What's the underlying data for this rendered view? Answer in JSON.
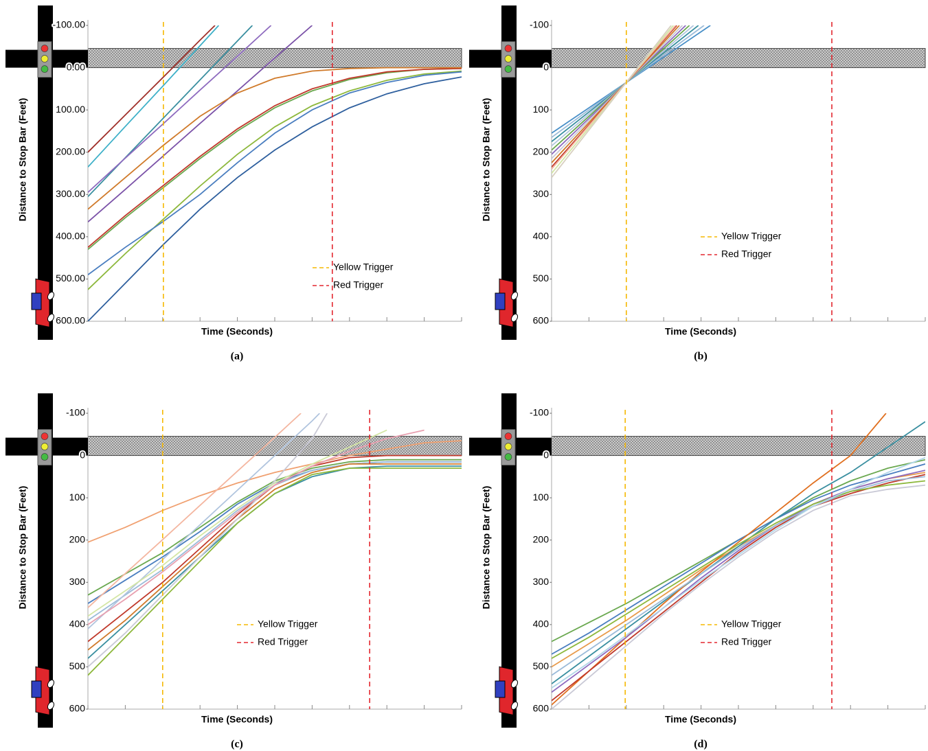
{
  "chart_data": [
    {
      "type": "line",
      "caption": "(a)",
      "ylabel": "Distance to Stop Bar (Feet)",
      "xlabel": "Time (Seconds)",
      "y_inverted": true,
      "ylim": [
        -100,
        600
      ],
      "xlim": [
        0,
        10
      ],
      "yticks": [
        {
          "value": -100,
          "label": "-100.00"
        },
        {
          "value": 0,
          "label": "0.00"
        },
        {
          "value": 100,
          "label": "100.00"
        },
        {
          "value": 200,
          "label": "200.00"
        },
        {
          "value": 300,
          "label": "300.00"
        },
        {
          "value": 400,
          "label": "400.00"
        },
        {
          "value": 500,
          "label": "500.00"
        },
        {
          "value": 600,
          "label": "600.00"
        }
      ],
      "xticks": [
        0,
        1,
        2,
        3,
        4,
        5,
        6,
        7,
        8,
        9,
        10
      ],
      "legend_position": "center-right",
      "vlines": [
        {
          "name": "Yellow Trigger",
          "color": "#f5b800",
          "x": 2.02
        },
        {
          "name": "Red Trigger",
          "color": "#e3262e",
          "x": 6.54
        }
      ],
      "x": [
        0,
        1,
        2,
        3,
        4,
        5,
        6,
        7,
        8,
        9,
        10
      ],
      "series": [
        {
          "color": "#2e5f9e",
          "values": [
            600,
            510,
            420,
            335,
            260,
            195,
            140,
            95,
            62,
            38,
            22
          ]
        },
        {
          "color": "#8db83c",
          "values": [
            525,
            440,
            360,
            280,
            205,
            140,
            90,
            55,
            30,
            15,
            8
          ]
        },
        {
          "color": "#4a7ec0",
          "values": [
            490,
            425,
            365,
            300,
            225,
            155,
            100,
            60,
            35,
            18,
            10
          ]
        },
        {
          "color": "#6aa84f",
          "values": [
            430,
            355,
            285,
            215,
            150,
            95,
            55,
            28,
            12,
            4,
            2
          ]
        },
        {
          "color": "#c0392b",
          "values": [
            425,
            350,
            280,
            210,
            145,
            90,
            50,
            25,
            10,
            4,
            2
          ]
        },
        {
          "color": "#7b52a8",
          "x": [
            0,
            1,
            2,
            3,
            4,
            5,
            6
          ],
          "values": [
            365,
            288,
            210,
            132,
            55,
            -23,
            -100
          ]
        },
        {
          "color": "#d07a2a",
          "values": [
            335,
            260,
            185,
            115,
            60,
            25,
            8,
            2,
            0,
            0,
            0
          ]
        },
        {
          "color": "#3a8fa0",
          "x": [
            0,
            1,
            2,
            3,
            4,
            4.4
          ],
          "values": [
            305,
            213,
            121,
            29,
            -63,
            -100
          ]
        },
        {
          "color": "#8e6bbf",
          "x": [
            0,
            1,
            2,
            3,
            4,
            4.9
          ],
          "values": [
            295,
            214,
            134,
            53,
            -27,
            -100
          ]
        },
        {
          "color": "#3db0c8",
          "x": [
            0,
            1,
            2,
            3,
            3.5
          ],
          "values": [
            235,
            139,
            44,
            -52,
            -100
          ]
        },
        {
          "color": "#a0302a",
          "x": [
            0,
            1,
            2,
            3,
            3.4
          ],
          "values": [
            200,
            112,
            24,
            -65,
            -100
          ]
        }
      ]
    },
    {
      "type": "line",
      "caption": "(b)",
      "ylabel": "Distance to Stop Bar (Feet)",
      "xlabel": "Time (Seconds)",
      "y_inverted": true,
      "ylim": [
        -100,
        600
      ],
      "xlim": [
        0,
        10
      ],
      "yticks": [
        -100,
        0,
        100,
        200,
        300,
        400,
        500,
        600
      ],
      "xticks": [
        0,
        1,
        2,
        3,
        4,
        5,
        6,
        7,
        8,
        9,
        10
      ],
      "legend_position": "center",
      "vlines": [
        {
          "name": "Yellow Trigger",
          "color": "#f5b800",
          "x": 2.0
        },
        {
          "name": "Red Trigger",
          "color": "#e3262e",
          "x": 7.5
        }
      ],
      "x": [
        0,
        1,
        2,
        3
      ],
      "series": [
        {
          "color": "#4a90c8",
          "x": [
            0,
            1,
            2,
            3,
            4.25
          ],
          "values": [
            155,
            95,
            35,
            -25,
            -100
          ]
        },
        {
          "color": "#9bbbd9",
          "x": [
            0,
            1,
            2,
            3,
            4.08
          ],
          "values": [
            165,
            100,
            35,
            -30,
            -100
          ]
        },
        {
          "color": "#3a8fa0",
          "x": [
            0,
            1,
            2,
            3,
            3.93
          ],
          "values": [
            175,
            105,
            35,
            -35,
            -100
          ]
        },
        {
          "color": "#b0c4de",
          "x": [
            0,
            1,
            2,
            3,
            3.8
          ],
          "values": [
            185,
            110,
            35,
            -40,
            -100
          ]
        },
        {
          "color": "#6aa84f",
          "x": [
            0,
            1,
            2,
            3,
            3.69
          ],
          "values": [
            195,
            115,
            35,
            -45,
            -100
          ]
        },
        {
          "color": "#8e6bbf",
          "x": [
            0,
            1,
            2,
            3,
            3.59
          ],
          "values": [
            205,
            120,
            35,
            -50,
            -100
          ]
        },
        {
          "color": "#c9c9d6",
          "x": [
            0,
            1,
            2,
            3,
            3.5
          ],
          "values": [
            215,
            125,
            35,
            -55,
            -100
          ]
        },
        {
          "color": "#d07a2a",
          "x": [
            0,
            1,
            2,
            3,
            3.42
          ],
          "values": [
            225,
            130,
            35,
            -60,
            -100
          ]
        },
        {
          "color": "#c0392b",
          "x": [
            0,
            1,
            2,
            3,
            3.35
          ],
          "values": [
            235,
            135,
            35,
            -65,
            -100
          ]
        },
        {
          "color": "#f4b6a0",
          "x": [
            0,
            1,
            2,
            3,
            3.32
          ],
          "values": [
            240,
            137.5,
            35,
            -67.5,
            -100
          ]
        },
        {
          "color": "#d4e6a5",
          "x": [
            0,
            1,
            2,
            3,
            3.26
          ],
          "values": [
            250,
            142.5,
            35,
            -72.5,
            -100
          ]
        },
        {
          "color": "#d8d0c0",
          "x": [
            0,
            1,
            2,
            3,
            3.2
          ],
          "values": [
            260,
            147.5,
            35,
            -77.5,
            -100
          ]
        }
      ]
    },
    {
      "type": "line",
      "caption": "(c)",
      "ylabel": "Distance to Stop Bar (Feet)",
      "xlabel": "Time (Seconds)",
      "y_inverted": true,
      "ylim": [
        -100,
        600
      ],
      "xlim": [
        0,
        10
      ],
      "yticks": [
        -100,
        0,
        100,
        200,
        300,
        400,
        500,
        600
      ],
      "xticks": [
        0,
        1,
        2,
        3,
        4,
        5,
        6,
        7,
        8,
        9,
        10
      ],
      "legend_position": "center",
      "vlines": [
        {
          "name": "Yellow Trigger",
          "color": "#f5b800",
          "x": 2.0
        },
        {
          "name": "Red Trigger",
          "color": "#e3262e",
          "x": 7.54
        }
      ],
      "x": [
        0,
        1,
        2,
        3,
        4,
        5,
        6,
        7,
        8,
        9,
        10
      ],
      "series": [
        {
          "color": "#f0a070",
          "values": [
            205,
            170,
            130,
            95,
            65,
            40,
            20,
            0,
            -15,
            -30,
            -35
          ]
        },
        {
          "color": "#6aa84f",
          "values": [
            330,
            280,
            230,
            170,
            110,
            60,
            30,
            15,
            10,
            10,
            10
          ]
        },
        {
          "color": "#4a7ec0",
          "values": [
            350,
            295,
            240,
            180,
            115,
            65,
            35,
            20,
            15,
            15,
            15
          ]
        },
        {
          "color": "#9bbbd9",
          "values": [
            390,
            330,
            270,
            200,
            130,
            70,
            35,
            20,
            15,
            15,
            15
          ]
        },
        {
          "color": "#c0392b",
          "values": [
            440,
            370,
            300,
            220,
            140,
            70,
            25,
            5,
            0,
            0,
            0
          ]
        },
        {
          "color": "#d07a2a",
          "values": [
            460,
            390,
            310,
            230,
            150,
            80,
            40,
            20,
            20,
            20,
            20
          ]
        },
        {
          "color": "#3a8fa0",
          "values": [
            480,
            400,
            320,
            240,
            160,
            90,
            50,
            30,
            25,
            25,
            25
          ]
        },
        {
          "color": "#8db83c",
          "values": [
            520,
            430,
            340,
            250,
            160,
            90,
            45,
            30,
            30,
            30,
            30
          ]
        },
        {
          "color": "#c9c9d6",
          "x": [
            0,
            1,
            2,
            3,
            4,
            5,
            6,
            6.4
          ],
          "values": [
            500,
            420,
            330,
            240,
            150,
            60,
            -40,
            -100
          ]
        },
        {
          "color": "#b0c4de",
          "x": [
            0,
            1,
            2,
            3,
            4,
            5,
            6,
            6.2
          ],
          "values": [
            410,
            328,
            246,
            164,
            82,
            0,
            -82,
            -100
          ]
        },
        {
          "color": "#f4b6a0",
          "x": [
            0,
            1,
            2,
            3,
            4,
            5,
            5.7
          ],
          "values": [
            360,
            279,
            199,
            118,
            37,
            -43,
            -100
          ]
        },
        {
          "color": "#d4e6a5",
          "x": [
            0,
            1,
            2,
            3,
            4,
            5,
            6,
            7,
            8
          ],
          "values": [
            380,
            320,
            260,
            190,
            125,
            65,
            20,
            -20,
            -60
          ]
        },
        {
          "color": "#e8a0b0",
          "x": [
            0,
            1,
            2,
            3,
            4,
            5,
            6,
            7,
            8,
            9
          ],
          "values": [
            400,
            340,
            275,
            205,
            135,
            70,
            25,
            -10,
            -40,
            -60
          ]
        }
      ]
    },
    {
      "type": "line",
      "caption": "(d)",
      "ylabel": "Distance to Stop Bar (Feet)",
      "xlabel": "Time (Seconds)",
      "y_inverted": true,
      "ylim": [
        -100,
        600
      ],
      "xlim": [
        0,
        10
      ],
      "yticks": [
        -100,
        0,
        100,
        200,
        300,
        400,
        500,
        600
      ],
      "xticks": [
        0,
        1,
        2,
        3,
        4,
        5,
        6,
        7,
        8,
        9,
        10
      ],
      "legend_position": "center",
      "vlines": [
        {
          "name": "Yellow Trigger",
          "color": "#f5b800",
          "x": 1.97
        },
        {
          "name": "Red Trigger",
          "color": "#e3262e",
          "x": 7.5
        }
      ],
      "x": [
        0,
        1,
        2,
        3,
        4,
        5,
        6,
        7,
        8,
        9,
        10
      ],
      "series": [
        {
          "color": "#6aa84f",
          "values": [
            440,
            395,
            350,
            300,
            250,
            200,
            150,
            100,
            60,
            30,
            10
          ]
        },
        {
          "color": "#4a7ec0",
          "values": [
            470,
            420,
            365,
            310,
            255,
            200,
            150,
            105,
            70,
            45,
            20
          ]
        },
        {
          "color": "#e89a4a",
          "values": [
            500,
            445,
            390,
            330,
            270,
            215,
            165,
            115,
            80,
            55,
            40
          ]
        },
        {
          "color": "#3a8fa0",
          "values": [
            540,
            475,
            410,
            345,
            280,
            215,
            150,
            90,
            40,
            -20,
            -80
          ]
        },
        {
          "color": "#e07020",
          "x": [
            0,
            1,
            2,
            3,
            4,
            5,
            6,
            7,
            8,
            8.95
          ],
          "values": [
            590,
            510,
            430,
            350,
            275,
            205,
            135,
            65,
            0,
            -100
          ]
        },
        {
          "color": "#8e6bbf",
          "values": [
            560,
            495,
            430,
            360,
            290,
            225,
            165,
            115,
            80,
            55,
            35
          ]
        },
        {
          "color": "#c0392b",
          "values": [
            580,
            510,
            440,
            370,
            300,
            230,
            170,
            120,
            90,
            65,
            45
          ]
        },
        {
          "color": "#9bbbd9",
          "values": [
            520,
            460,
            400,
            340,
            280,
            220,
            165,
            120,
            85,
            60,
            50
          ]
        },
        {
          "color": "#8db83c",
          "values": [
            480,
            430,
            375,
            320,
            265,
            210,
            160,
            115,
            85,
            70,
            60
          ]
        },
        {
          "color": "#c9c9d6",
          "values": [
            600,
            525,
            450,
            375,
            305,
            240,
            180,
            130,
            95,
            80,
            70
          ]
        },
        {
          "color": "#b0d6e8",
          "values": [
            550,
            490,
            425,
            360,
            295,
            235,
            175,
            120,
            80,
            40,
            5
          ]
        }
      ]
    }
  ]
}
